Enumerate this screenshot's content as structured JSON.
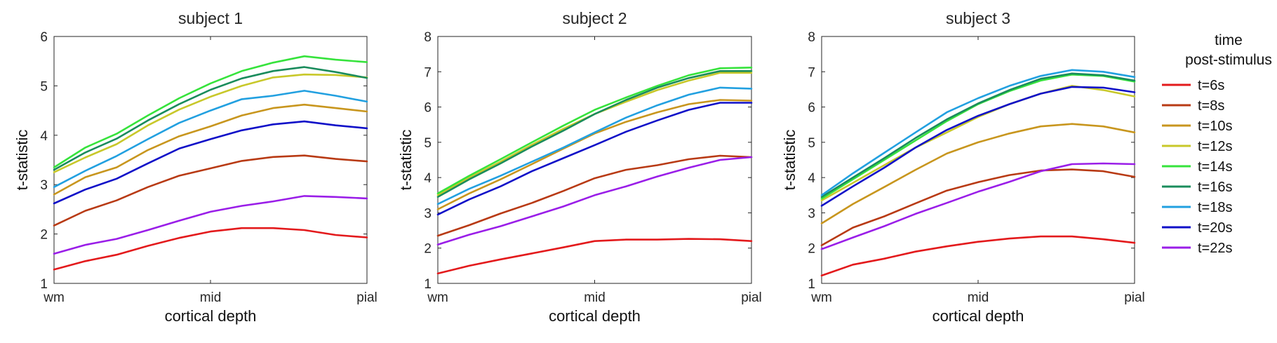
{
  "legend": {
    "title_lines": [
      "time",
      "post-stimulus"
    ],
    "entries": [
      {
        "label": "t=6s",
        "color": "#e31a1c"
      },
      {
        "label": "t=8s",
        "color": "#b83a14"
      },
      {
        "label": "t=10s",
        "color": "#c8961e"
      },
      {
        "label": "t=12s",
        "color": "#c8c82a"
      },
      {
        "label": "t=14s",
        "color": "#36e33c"
      },
      {
        "label": "t=16s",
        "color": "#1a8c5c"
      },
      {
        "label": "t=18s",
        "color": "#22a0e0"
      },
      {
        "label": "t=20s",
        "color": "#1010c8"
      },
      {
        "label": "t=22s",
        "color": "#9a1ee8"
      }
    ]
  },
  "chart_data": [
    {
      "type": "line",
      "title": "subject 1",
      "xlabel": "cortical depth",
      "ylabel": "t-statistic",
      "x": [
        0,
        1,
        2,
        3,
        4,
        5,
        6,
        7,
        8,
        9,
        10
      ],
      "xticks": [
        {
          "value": 0,
          "label": "wm"
        },
        {
          "value": 5,
          "label": "mid"
        },
        {
          "value": 10,
          "label": "pial"
        }
      ],
      "xlim": [
        0,
        10
      ],
      "ylim": [
        1,
        6
      ],
      "yticks": [
        1,
        2,
        3,
        4,
        5,
        6
      ],
      "series": [
        {
          "name": "t=6s",
          "values": [
            1.28,
            1.45,
            1.58,
            1.76,
            1.92,
            2.05,
            2.12,
            2.12,
            2.08,
            1.98,
            1.93
          ]
        },
        {
          "name": "t=8s",
          "values": [
            2.17,
            2.47,
            2.68,
            2.95,
            3.18,
            3.33,
            3.48,
            3.56,
            3.59,
            3.52,
            3.47
          ]
        },
        {
          "name": "t=10s",
          "values": [
            2.8,
            3.15,
            3.35,
            3.7,
            3.98,
            4.18,
            4.4,
            4.55,
            4.62,
            4.55,
            4.48
          ]
        },
        {
          "name": "t=12s",
          "values": [
            3.25,
            3.55,
            3.82,
            4.2,
            4.52,
            4.78,
            5.0,
            5.17,
            5.23,
            5.22,
            5.17
          ]
        },
        {
          "name": "t=14s",
          "values": [
            3.35,
            3.75,
            4.03,
            4.4,
            4.75,
            5.05,
            5.3,
            5.47,
            5.6,
            5.53,
            5.48
          ]
        },
        {
          "name": "t=16s",
          "values": [
            3.3,
            3.65,
            3.93,
            4.3,
            4.63,
            4.92,
            5.15,
            5.3,
            5.38,
            5.28,
            5.16
          ]
        },
        {
          "name": "t=18s",
          "values": [
            2.95,
            3.28,
            3.58,
            3.92,
            4.25,
            4.5,
            4.73,
            4.8,
            4.9,
            4.8,
            4.68
          ]
        },
        {
          "name": "t=20s",
          "values": [
            2.62,
            2.9,
            3.12,
            3.43,
            3.73,
            3.92,
            4.1,
            4.22,
            4.28,
            4.2,
            4.14
          ]
        },
        {
          "name": "t=22s",
          "values": [
            1.6,
            1.78,
            1.9,
            2.08,
            2.27,
            2.45,
            2.57,
            2.66,
            2.77,
            2.75,
            2.72
          ]
        }
      ]
    },
    {
      "type": "line",
      "title": "subject 2",
      "xlabel": "cortical depth",
      "ylabel": "t-statistic",
      "x": [
        0,
        1,
        2,
        3,
        4,
        5,
        6,
        7,
        8,
        9,
        10
      ],
      "xticks": [
        {
          "value": 0,
          "label": "wm"
        },
        {
          "value": 5,
          "label": "mid"
        },
        {
          "value": 10,
          "label": "pial"
        }
      ],
      "xlim": [
        0,
        10
      ],
      "ylim": [
        1,
        8
      ],
      "yticks": [
        1,
        2,
        3,
        4,
        5,
        6,
        7,
        8
      ],
      "series": [
        {
          "name": "t=6s",
          "values": [
            1.28,
            1.5,
            1.68,
            1.85,
            2.02,
            2.2,
            2.24,
            2.24,
            2.26,
            2.25,
            2.2
          ]
        },
        {
          "name": "t=8s",
          "values": [
            2.35,
            2.65,
            2.98,
            3.28,
            3.62,
            3.98,
            4.22,
            4.35,
            4.52,
            4.62,
            4.58
          ]
        },
        {
          "name": "t=10s",
          "values": [
            3.1,
            3.55,
            3.95,
            4.38,
            4.82,
            5.25,
            5.58,
            5.85,
            6.08,
            6.2,
            6.18
          ]
        },
        {
          "name": "t=12s",
          "values": [
            3.5,
            4.0,
            4.45,
            4.93,
            5.38,
            5.8,
            6.15,
            6.48,
            6.75,
            6.97,
            6.97
          ]
        },
        {
          "name": "t=14s",
          "values": [
            3.55,
            4.05,
            4.52,
            5.0,
            5.47,
            5.92,
            6.27,
            6.6,
            6.9,
            7.1,
            7.12
          ]
        },
        {
          "name": "t=16s",
          "values": [
            3.45,
            3.95,
            4.4,
            4.88,
            5.33,
            5.8,
            6.2,
            6.55,
            6.82,
            7.02,
            7.02
          ]
        },
        {
          "name": "t=18s",
          "values": [
            3.25,
            3.68,
            4.05,
            4.45,
            4.85,
            5.28,
            5.7,
            6.05,
            6.35,
            6.55,
            6.52
          ]
        },
        {
          "name": "t=20s",
          "values": [
            2.95,
            3.38,
            3.75,
            4.18,
            4.55,
            4.92,
            5.3,
            5.62,
            5.92,
            6.12,
            6.12
          ]
        },
        {
          "name": "t=22s",
          "values": [
            2.1,
            2.38,
            2.62,
            2.9,
            3.18,
            3.5,
            3.75,
            4.03,
            4.28,
            4.5,
            4.58
          ]
        }
      ]
    },
    {
      "type": "line",
      "title": "subject 3",
      "xlabel": "cortical depth",
      "ylabel": "t-statistic",
      "x": [
        0,
        1,
        2,
        3,
        4,
        5,
        6,
        7,
        8,
        9,
        10
      ],
      "xticks": [
        {
          "value": 0,
          "label": "wm"
        },
        {
          "value": 5,
          "label": "mid"
        },
        {
          "value": 10,
          "label": "pial"
        }
      ],
      "xlim": [
        0,
        10
      ],
      "ylim": [
        1,
        8
      ],
      "yticks": [
        1,
        2,
        3,
        4,
        5,
        6,
        7,
        8
      ],
      "series": [
        {
          "name": "t=6s",
          "values": [
            1.22,
            1.53,
            1.7,
            1.9,
            2.05,
            2.18,
            2.27,
            2.33,
            2.33,
            2.25,
            2.15
          ]
        },
        {
          "name": "t=8s",
          "values": [
            2.08,
            2.58,
            2.9,
            3.27,
            3.63,
            3.87,
            4.07,
            4.2,
            4.23,
            4.18,
            4.02
          ]
        },
        {
          "name": "t=10s",
          "values": [
            2.7,
            3.25,
            3.73,
            4.22,
            4.68,
            5.0,
            5.25,
            5.45,
            5.52,
            5.45,
            5.28
          ]
        },
        {
          "name": "t=12s",
          "values": [
            3.35,
            3.85,
            4.35,
            4.85,
            5.28,
            5.72,
            6.08,
            6.38,
            6.6,
            6.48,
            6.3
          ]
        },
        {
          "name": "t=14s",
          "values": [
            3.4,
            3.95,
            4.5,
            5.05,
            5.6,
            6.08,
            6.45,
            6.75,
            6.92,
            6.88,
            6.72
          ]
        },
        {
          "name": "t=16s",
          "values": [
            3.45,
            4.0,
            4.55,
            5.12,
            5.65,
            6.1,
            6.48,
            6.8,
            6.95,
            6.9,
            6.75
          ]
        },
        {
          "name": "t=18s",
          "values": [
            3.5,
            4.12,
            4.7,
            5.28,
            5.85,
            6.25,
            6.6,
            6.88,
            7.05,
            7.0,
            6.85
          ]
        },
        {
          "name": "t=20s",
          "values": [
            3.2,
            3.75,
            4.28,
            4.85,
            5.35,
            5.75,
            6.08,
            6.38,
            6.57,
            6.55,
            6.42
          ]
        },
        {
          "name": "t=22s",
          "values": [
            1.97,
            2.3,
            2.62,
            2.97,
            3.28,
            3.6,
            3.88,
            4.18,
            4.38,
            4.4,
            4.38
          ]
        }
      ]
    }
  ]
}
